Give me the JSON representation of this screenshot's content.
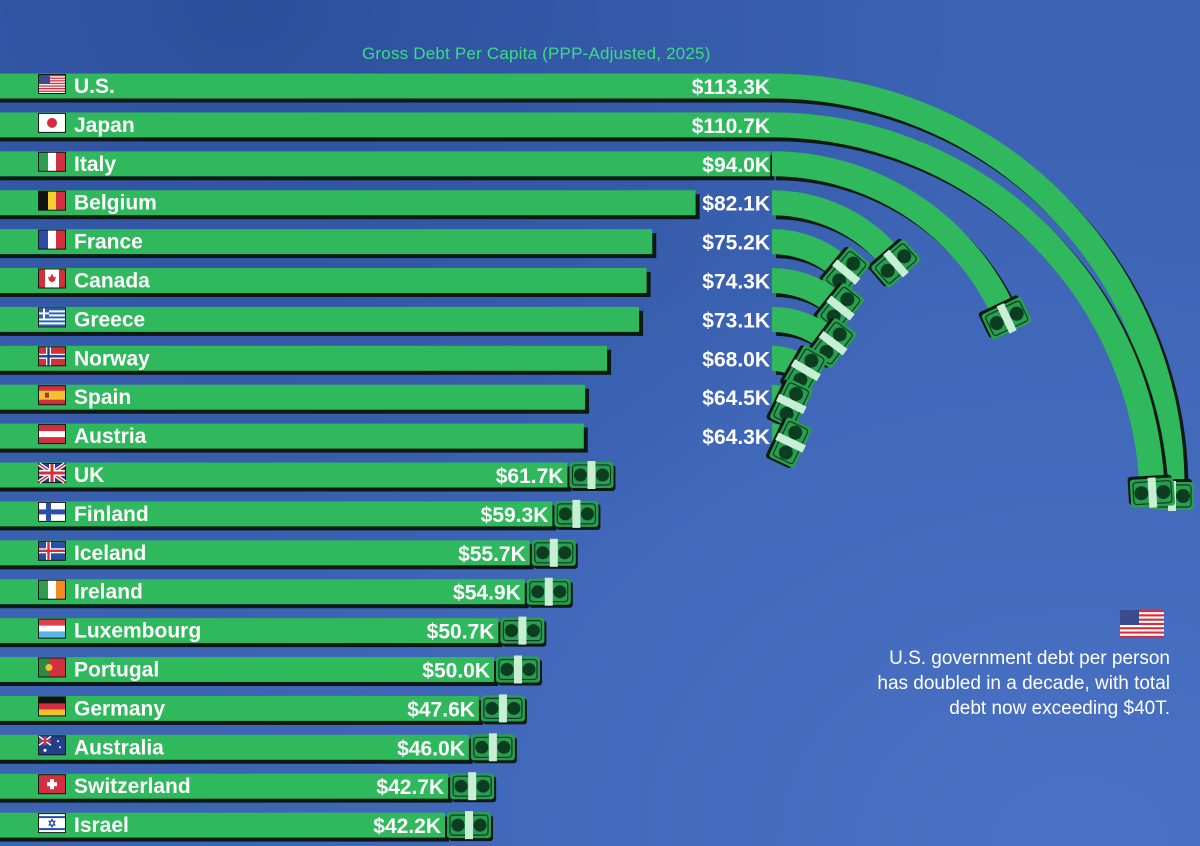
{
  "chart_data": {
    "type": "bar",
    "orientation": "horizontal",
    "title": "Gross Debt Per Capita (PPP-Adjusted, 2025)",
    "categories": [
      "U.S.",
      "Japan",
      "Italy",
      "Belgium",
      "France",
      "Canada",
      "Greece",
      "Norway",
      "Spain",
      "Austria",
      "UK",
      "Finland",
      "Iceland",
      "Ireland",
      "Luxembourg",
      "Portugal",
      "Germany",
      "Australia",
      "Switzerland",
      "Israel"
    ],
    "values": [
      113.3,
      110.7,
      94.0,
      82.1,
      75.2,
      74.3,
      73.1,
      68.0,
      64.5,
      64.3,
      61.7,
      59.3,
      55.7,
      54.9,
      50.7,
      50.0,
      47.6,
      46.0,
      42.7,
      42.2
    ],
    "value_labels": [
      "$113.3K",
      "$110.7K",
      "$94.0K",
      "$82.1K",
      "$75.2K",
      "$74.3K",
      "$73.1K",
      "$68.0K",
      "$64.5K",
      "$64.3K",
      "$61.7K",
      "$59.3K",
      "$55.7K",
      "$54.9K",
      "$50.7K",
      "$50.0K",
      "$47.6K",
      "$46.0K",
      "$42.7K",
      "$42.2K"
    ],
    "unit": "USD thousands",
    "legend": "none",
    "grid": false
  },
  "annotation": {
    "text": "U.S. government debt per person has doubled in a decade, with total debt now exceeding $40T.",
    "flag_icon": "us-flag-icon"
  },
  "colors": {
    "background": "#3c63b4",
    "bar": "#2fb85c",
    "bar_shadow": "#0d1a14",
    "title": "#3ddc84",
    "text": "#ffffff"
  }
}
